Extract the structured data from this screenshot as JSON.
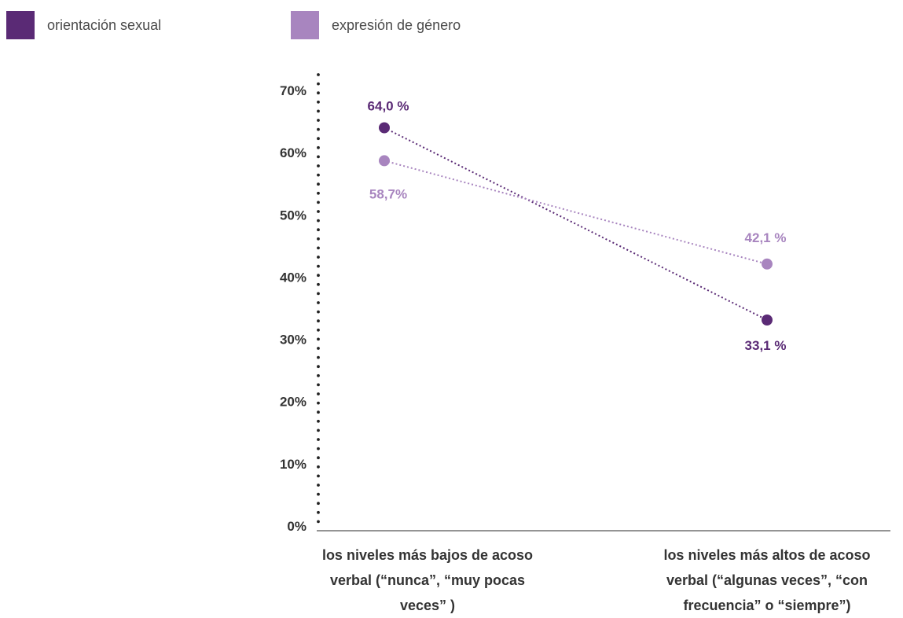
{
  "legend": [
    {
      "label": "orientación sexual",
      "color": "#5a2a75"
    },
    {
      "label": "expresión de género",
      "color": "#a885bf"
    }
  ],
  "chart_data": {
    "type": "line",
    "categories": [
      "los niveles más bajos de acoso verbal (“nunca”, “muy pocas veces” )",
      "los niveles más altos de acoso verbal (“algunas veces”, “con frecuencia” o “siempre”)"
    ],
    "series": [
      {
        "name": "orientación sexual",
        "color": "#5a2a75",
        "values": [
          64.0,
          33.1
        ],
        "labels": [
          "64,0 %",
          "33,1 %"
        ]
      },
      {
        "name": "expresión de género",
        "color": "#a885bf",
        "values": [
          58.7,
          42.1
        ],
        "labels": [
          "58,7%",
          "42,1 %"
        ]
      }
    ],
    "yticks": [
      "0%",
      "10%",
      "20%",
      "30%",
      "40%",
      "50%",
      "60%",
      "70%"
    ],
    "ylim": [
      0,
      70
    ],
    "grid": false,
    "legend_position": "top-left"
  }
}
